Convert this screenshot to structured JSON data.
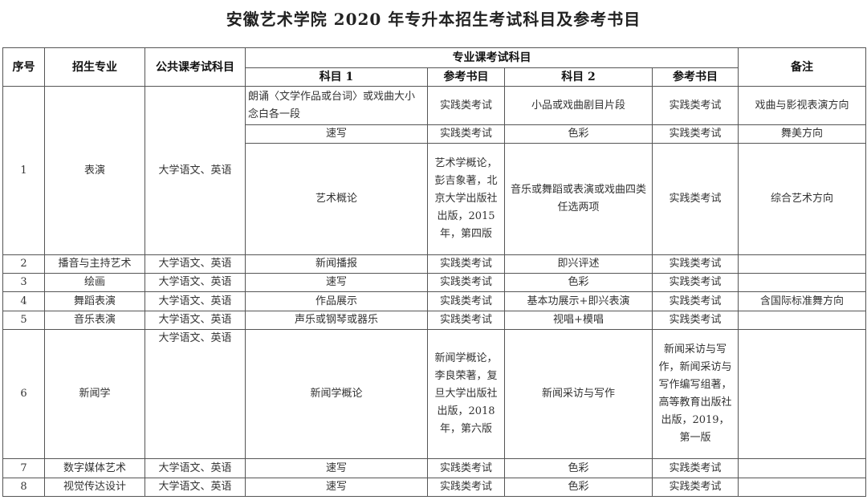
{
  "title": "安徽艺术学院 2020 年专升本招生考试科目及参考书目",
  "headers": {
    "seq": "序号",
    "major": "招生专业",
    "public": "公共课考试科目",
    "professional": "专业课考试科目",
    "subject1": "科目 1",
    "ref1": "参考书目",
    "subject2": "科目 2",
    "ref2": "参考书目",
    "remarks": "备注"
  },
  "rows": [
    {
      "seq": "1",
      "major": "表演",
      "public": "大学语文、英语",
      "sub": [
        {
          "subject1": "朗诵〈文学作品或台词〉或戏曲大小念白各一段",
          "ref1": "实践类考试",
          "subject2": "小品或戏曲剧目片段",
          "ref2": "实践类考试",
          "remarks": "戏曲与影视表演方向"
        },
        {
          "subject1": "速写",
          "ref1": "实践类考试",
          "subject2": "色彩",
          "ref2": "实践类考试",
          "remarks": "舞美方向"
        },
        {
          "subject1": "艺术概论",
          "ref1": "艺术学概论，彭吉象著，北京大学出版社出版，2015年，第四版",
          "subject2": "音乐或舞蹈或表演或戏曲四类任选两项",
          "ref2": "实践类考试",
          "remarks": "综合艺术方向"
        }
      ]
    },
    {
      "seq": "2",
      "major": "播音与主持艺术",
      "public": "大学语文、英语",
      "subject1": "新闻播报",
      "ref1": "实践类考试",
      "subject2": "即兴评述",
      "ref2": "实践类考试",
      "remarks": ""
    },
    {
      "seq": "3",
      "major": "绘画",
      "public": "大学语文、英语",
      "subject1": "速写",
      "ref1": "实践类考试",
      "subject2": "色彩",
      "ref2": "实践类考试",
      "remarks": ""
    },
    {
      "seq": "4",
      "major": "舞蹈表演",
      "public": "大学语文、英语",
      "subject1": "作品展示",
      "ref1": "实践类考试",
      "subject2": "基本功展示+即兴表演",
      "ref2": "实践类考试",
      "remarks": "含国际标准舞方向"
    },
    {
      "seq": "5",
      "major": "音乐表演",
      "public": "大学语文、英语",
      "subject1": "声乐或钢琴或器乐",
      "ref1": "实践类考试",
      "subject2": "视唱+模唱",
      "ref2": "实践类考试",
      "remarks": ""
    },
    {
      "seq": "6",
      "major": "新闻学",
      "public": "大学语文、英语",
      "subject1": "新闻学概论",
      "ref1": "新闻学概论，李良荣著，复旦大学出版社出版，2018年，第六版",
      "subject2": "新闻采访与写作",
      "ref2": "新闻采访与写作，新闻采访与写作编写组著，高等教育出版社出版，2019，第一版",
      "remarks": ""
    },
    {
      "seq": "7",
      "major": "数字媒体艺术",
      "public": "大学语文、英语",
      "subject1": "速写",
      "ref1": "实践类考试",
      "subject2": "色彩",
      "ref2": "实践类考试",
      "remarks": ""
    },
    {
      "seq": "8",
      "major": "视觉传达设计",
      "public": "大学语文、英语",
      "subject1": "速写",
      "ref1": "实践类考试",
      "subject2": "色彩",
      "ref2": "实践类考试",
      "remarks": ""
    }
  ]
}
